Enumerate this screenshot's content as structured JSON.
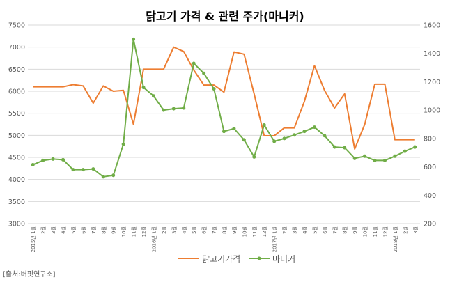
{
  "chart_data": {
    "type": "line",
    "title": "닭고기 가격 & 관련 주가(마니커)",
    "source": "[출처:버핏연구소]",
    "grid": true,
    "legend_position": "bottom",
    "x": [
      "2015년 1월",
      "2월",
      "3월",
      "4월",
      "5월",
      "6월",
      "7월",
      "8월",
      "9월",
      "10월",
      "11월",
      "12월",
      "2016년 1월",
      "2월",
      "3월",
      "4월",
      "5월",
      "6월",
      "7월",
      "8월",
      "9월",
      "10월",
      "11월",
      "12월",
      "2017년 1월",
      "2월",
      "3월",
      "4월",
      "5월",
      "6월",
      "7월",
      "8월",
      "9월",
      "10월",
      "11월",
      "12월",
      "2018년 1월",
      "2월",
      "3월"
    ],
    "y_left": {
      "min": 3000,
      "max": 7500,
      "step": 500,
      "ticks": [
        "3000",
        "3500",
        "4000",
        "4500",
        "5000",
        "5500",
        "6000",
        "6500",
        "7000",
        "7500"
      ]
    },
    "y_right": {
      "min": 200,
      "max": 1600,
      "step": 200,
      "ticks": [
        "200",
        "400",
        "600",
        "800",
        "1000",
        "1200",
        "1400",
        "1600"
      ]
    },
    "series": [
      {
        "name": "닭고기가격",
        "color": "#ED7D31",
        "axis": "left",
        "values": [
          6100,
          6100,
          6100,
          6100,
          6150,
          6120,
          5730,
          6120,
          6000,
          6020,
          5250,
          6500,
          6500,
          6500,
          7000,
          6900,
          6480,
          6140,
          6140,
          5980,
          6890,
          6840,
          5940,
          4990,
          4990,
          5170,
          5170,
          5770,
          6580,
          6020,
          5620,
          5940,
          4690,
          5250,
          6160,
          6160,
          4900,
          4900,
          4900
        ]
      },
      {
        "name": "마니커",
        "color": "#70AD47",
        "axis": "right",
        "values": [
          615,
          645,
          655,
          650,
          580,
          580,
          585,
          530,
          540,
          760,
          1500,
          1160,
          1100,
          1000,
          1010,
          1015,
          1330,
          1260,
          1150,
          850,
          870,
          790,
          670,
          895,
          780,
          800,
          825,
          850,
          880,
          820,
          740,
          735,
          660,
          675,
          645,
          645,
          675,
          710,
          740
        ]
      }
    ]
  }
}
